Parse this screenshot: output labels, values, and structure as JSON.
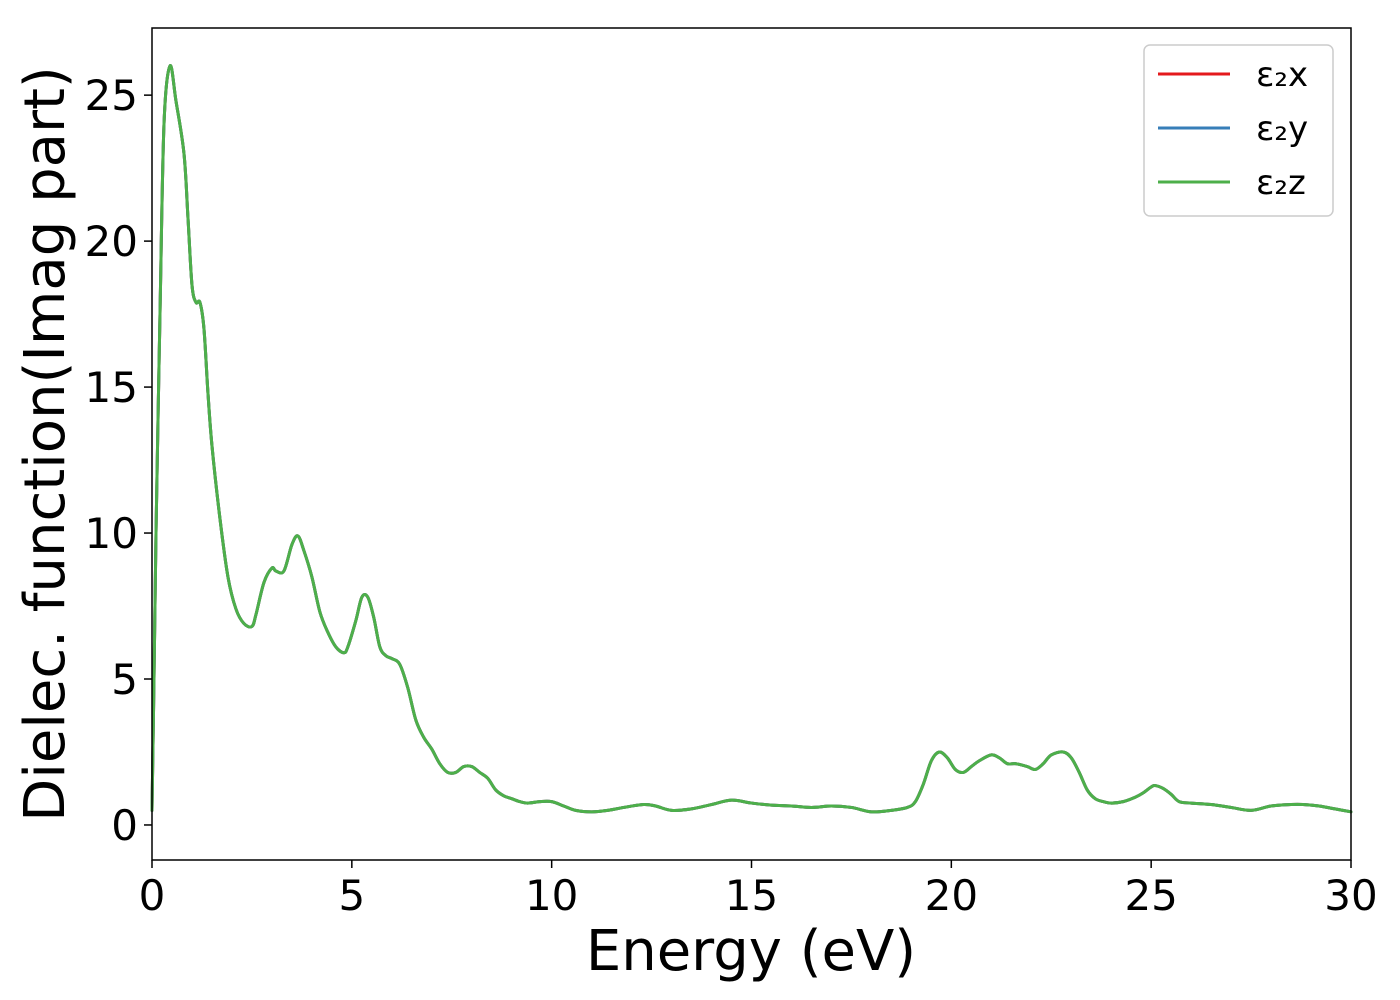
{
  "chart_data": {
    "type": "line",
    "title": "",
    "xlabel": "Energy (eV)",
    "ylabel": "Dielec. function(Imag part)",
    "xlim": [
      0,
      30
    ],
    "ylim": [
      -1.2,
      27.3
    ],
    "xticks": [
      0,
      5,
      10,
      15,
      20,
      25,
      30
    ],
    "yticks": [
      0,
      5,
      10,
      15,
      20,
      25
    ],
    "grid": false,
    "legend_position": "top-right",
    "series": [
      {
        "name": "ε₂x",
        "color": "#e41a1c"
      },
      {
        "name": "ε₂y",
        "color": "#377eb8"
      },
      {
        "name": "ε₂z",
        "color": "#4daf4a"
      }
    ],
    "x": [
      0,
      0.05,
      0.1,
      0.2,
      0.3,
      0.45,
      0.6,
      0.8,
      0.9,
      1.0,
      1.1,
      1.2,
      1.3,
      1.4,
      1.5,
      1.7,
      1.9,
      2.1,
      2.3,
      2.5,
      2.6,
      2.8,
      3.0,
      3.1,
      3.3,
      3.5,
      3.65,
      3.8,
      4.0,
      4.2,
      4.4,
      4.6,
      4.8,
      4.9,
      5.1,
      5.25,
      5.4,
      5.55,
      5.7,
      5.85,
      6.0,
      6.2,
      6.4,
      6.6,
      6.8,
      7.0,
      7.2,
      7.4,
      7.6,
      7.8,
      8.0,
      8.2,
      8.4,
      8.6,
      8.8,
      9.0,
      9.2,
      9.4,
      9.7,
      10.0,
      10.3,
      10.6,
      11.0,
      11.4,
      11.8,
      12.3,
      12.6,
      13.0,
      13.5,
      14.0,
      14.5,
      15.0,
      15.5,
      16.0,
      16.5,
      17.0,
      17.5,
      18.0,
      18.5,
      18.9,
      19.1,
      19.3,
      19.5,
      19.7,
      19.9,
      20.1,
      20.3,
      20.5,
      20.7,
      21.0,
      21.2,
      21.4,
      21.6,
      21.9,
      22.1,
      22.3,
      22.5,
      22.8,
      23.0,
      23.2,
      23.4,
      23.6,
      23.8,
      24.0,
      24.3,
      24.6,
      24.8,
      25.0,
      25.1,
      25.3,
      25.5,
      25.7,
      26.0,
      26.5,
      27.0,
      27.5,
      28.0,
      28.5,
      28.8,
      29.2,
      29.6,
      30.0
    ],
    "y": [
      0.5,
      5.0,
      10.0,
      17.5,
      24.0,
      26.0,
      24.8,
      23.0,
      20.8,
      18.5,
      17.9,
      17.9,
      17.0,
      14.8,
      13.0,
      10.5,
      8.5,
      7.4,
      6.9,
      6.8,
      7.2,
      8.3,
      8.8,
      8.7,
      8.7,
      9.6,
      9.9,
      9.4,
      8.5,
      7.3,
      6.6,
      6.1,
      5.9,
      6.1,
      7.0,
      7.8,
      7.8,
      7.1,
      6.1,
      5.8,
      5.7,
      5.5,
      4.7,
      3.6,
      3.0,
      2.6,
      2.1,
      1.8,
      1.8,
      2.0,
      2.0,
      1.8,
      1.6,
      1.2,
      1.0,
      0.9,
      0.8,
      0.75,
      0.8,
      0.8,
      0.65,
      0.5,
      0.45,
      0.5,
      0.6,
      0.7,
      0.65,
      0.5,
      0.55,
      0.7,
      0.85,
      0.75,
      0.68,
      0.65,
      0.6,
      0.65,
      0.6,
      0.45,
      0.5,
      0.6,
      0.8,
      1.4,
      2.2,
      2.5,
      2.3,
      1.9,
      1.8,
      2.0,
      2.2,
      2.4,
      2.3,
      2.1,
      2.1,
      2.0,
      1.9,
      2.1,
      2.4,
      2.5,
      2.3,
      1.8,
      1.2,
      0.9,
      0.8,
      0.75,
      0.8,
      0.95,
      1.1,
      1.3,
      1.35,
      1.25,
      1.05,
      0.8,
      0.75,
      0.7,
      0.6,
      0.5,
      0.65,
      0.7,
      0.7,
      0.65,
      0.55,
      0.45
    ]
  }
}
